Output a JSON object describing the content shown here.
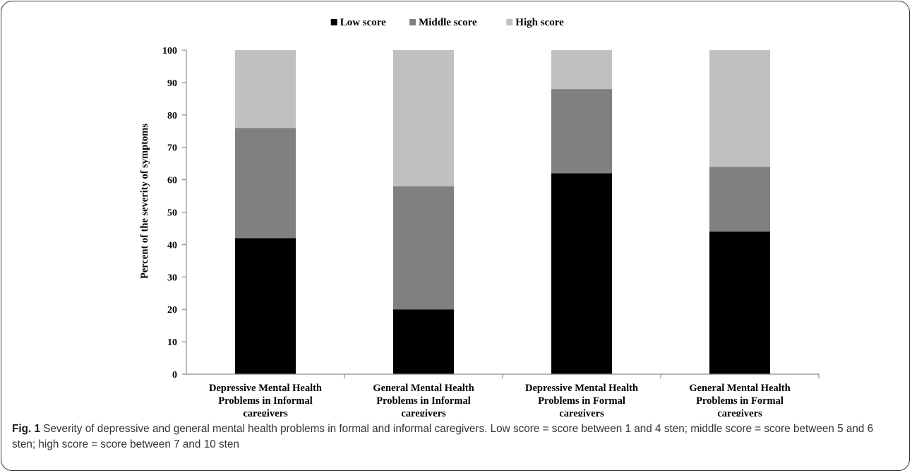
{
  "chart_data": {
    "type": "bar",
    "stacked": true,
    "ylabel": "Percent of the severity of symptoms",
    "ylim": [
      0,
      100
    ],
    "yticks": [
      0,
      10,
      20,
      30,
      40,
      50,
      60,
      70,
      80,
      90,
      100
    ],
    "legend_position": "top",
    "categories": [
      [
        "Depressive Mental Health",
        "Problems in Informal",
        "caregivers"
      ],
      [
        "General Mental Health",
        "Problems in Informal",
        "caregivers"
      ],
      [
        "Depressive Mental Health",
        "Problems in Formal",
        "caregivers"
      ],
      [
        "General Mental Health",
        "Problems in Formal",
        "caregivers"
      ]
    ],
    "series": [
      {
        "name": "Low score",
        "color": "#000000",
        "values": [
          42,
          20,
          62,
          44
        ]
      },
      {
        "name": "Middle score",
        "color": "#808080",
        "values": [
          34,
          38,
          26,
          20
        ]
      },
      {
        "name": "High score",
        "color": "#c0c0c0",
        "values": [
          24,
          42,
          12,
          36
        ]
      }
    ]
  },
  "caption": {
    "label": "Fig. 1",
    "text": "Severity of depressive and general mental health problems in formal and informal caregivers. Low score = score between 1 and 4 sten; middle score = score between 5 and 6 sten; high score = score between 7 and 10 sten"
  }
}
